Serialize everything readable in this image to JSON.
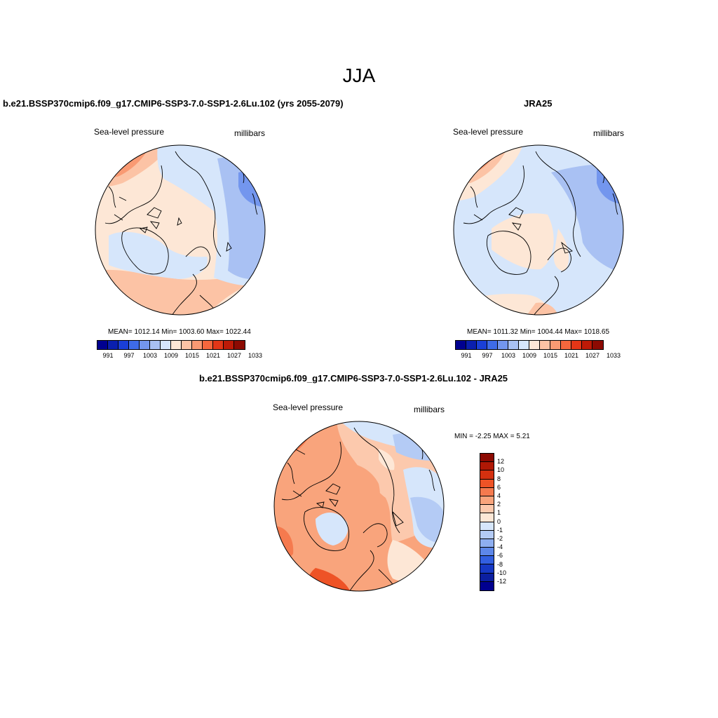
{
  "season": "JJA",
  "panels": {
    "model": {
      "title": "b.e21.BSSP370cmip6.f09_g17.CMIP6-SSP3-7.0-SSP1-2.6Lu.102 (yrs 2055-2079)",
      "left_label": "Sea-level pressure",
      "right_label": "millibars",
      "stats": "MEAN= 1012.14  Min= 1003.60  Max= 1022.44"
    },
    "obs": {
      "title": "JRA25",
      "left_label": "Sea-level pressure",
      "right_label": "millibars",
      "stats": "MEAN= 1011.32  Min= 1004.44  Max= 1018.65"
    },
    "diff": {
      "title": "b.e21.BSSP370cmip6.f09_g17.CMIP6-SSP3-7.0-SSP1-2.6Lu.102 - JRA25",
      "left_label": "Sea-level pressure",
      "right_label": "millibars",
      "stats": "MIN =  -2.25 MAX =   5.21"
    }
  },
  "colorbar_abs": {
    "ticks": [
      "991",
      "997",
      "1003",
      "1009",
      "1015",
      "1021",
      "1027",
      "1033"
    ],
    "colors": [
      "#00008f",
      "#0a1fae",
      "#1a3fd6",
      "#3e6be8",
      "#7396ee",
      "#a9c1f3",
      "#d6e6fb",
      "#fde7d6",
      "#fcc3a5",
      "#f99a73",
      "#f5673d",
      "#e33617",
      "#bd1a07",
      "#8c0a02"
    ]
  },
  "colorbar_diff": {
    "ticks": [
      "12",
      "10",
      "8",
      "6",
      "4",
      "2",
      "1",
      "0",
      "-1",
      "-2",
      "-4",
      "-6",
      "-8",
      "-10",
      "-12"
    ],
    "colors": [
      "#8c0a02",
      "#b01805",
      "#d4300f",
      "#ee5326",
      "#f57a4e",
      "#f9a47c",
      "#fcc9ad",
      "#fde7d6",
      "#d6e6fb",
      "#b4cbf5",
      "#8eaef0",
      "#5d87e9",
      "#325fe0",
      "#1638c4",
      "#0b1fa0",
      "#00008f"
    ]
  }
}
